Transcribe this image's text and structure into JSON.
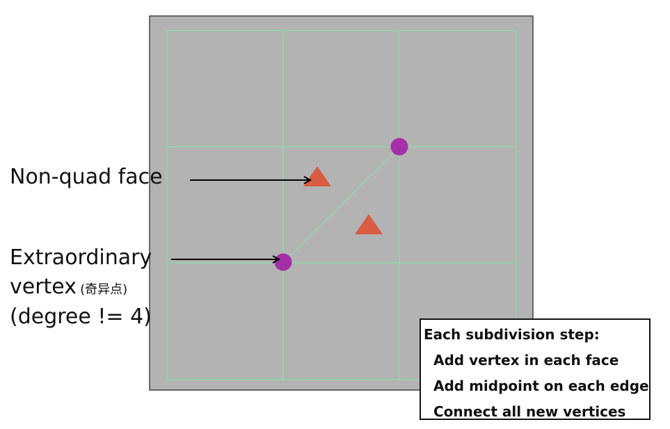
{
  "labels": {
    "non_quad_face": "Non-quad face",
    "extraordinary_line1": "Extraordinary",
    "extraordinary_line2_main": "vertex",
    "extraordinary_line2_cn": "(奇异点)",
    "extraordinary_line3": "(degree != 4)"
  },
  "info_box": {
    "title": "Each subdivision step:",
    "steps": [
      "Add vertex in each face",
      "Add midpoint on each edge",
      "Connect all new vertices"
    ]
  },
  "colors": {
    "panel_fill": "#b3b3b3",
    "panel_border": "#444444",
    "grid_line": "#7ee8a0",
    "vertex_marker": "#a52fa8",
    "face_marker": "#d95c43",
    "arrow": "#000000"
  }
}
